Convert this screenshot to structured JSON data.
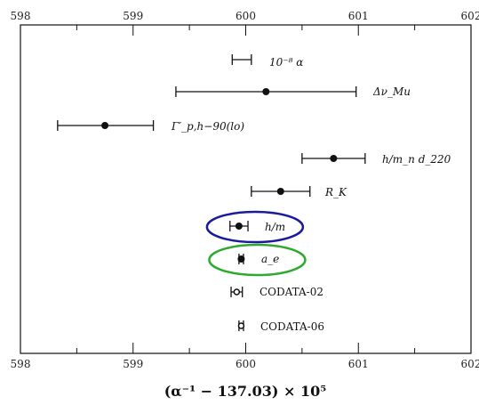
{
  "chart_data": {
    "type": "scatter",
    "title": "",
    "xlabel": "(α⁻¹ − 137.03) × 10⁵",
    "ylabel": "",
    "xlim": [
      598,
      602
    ],
    "x_ticks": [
      598,
      599,
      600,
      601,
      602
    ],
    "x_tick_labels": [
      "598",
      "599",
      "600",
      "601",
      "602"
    ],
    "grid": false,
    "series": [
      {
        "name": "10⁻⁸ α",
        "x": 599.97,
        "err_low": 599.88,
        "err_high": 600.05,
        "marker": "none",
        "highlight": ""
      },
      {
        "name": "Δν_Mu",
        "x": 600.18,
        "err_low": 599.38,
        "err_high": 600.98,
        "marker": "filled",
        "highlight": ""
      },
      {
        "name": "Γ′_p,h−90(lo)",
        "x": 598.75,
        "err_low": 598.33,
        "err_high": 599.18,
        "marker": "filled",
        "highlight": ""
      },
      {
        "name": "h/m_n d_220",
        "x": 600.78,
        "err_low": 600.5,
        "err_high": 601.06,
        "marker": "filled",
        "highlight": ""
      },
      {
        "name": "R_K",
        "x": 600.31,
        "err_low": 600.05,
        "err_high": 600.57,
        "marker": "filled",
        "highlight": ""
      },
      {
        "name": "h/m",
        "x": 599.94,
        "err_low": 599.86,
        "err_high": 600.02,
        "marker": "filled",
        "highlight": "#1a1a9c"
      },
      {
        "name": "a_e",
        "x": 599.96,
        "err_low": 599.94,
        "err_high": 599.98,
        "marker": "filled",
        "highlight": "#2eaa2e"
      },
      {
        "name": "CODATA-02",
        "x": 599.92,
        "err_low": 599.87,
        "err_high": 599.97,
        "marker": "open",
        "highlight": ""
      },
      {
        "name": "CODATA-06",
        "x": 599.96,
        "err_low": 599.94,
        "err_high": 599.98,
        "marker": "open",
        "highlight": ""
      }
    ]
  }
}
